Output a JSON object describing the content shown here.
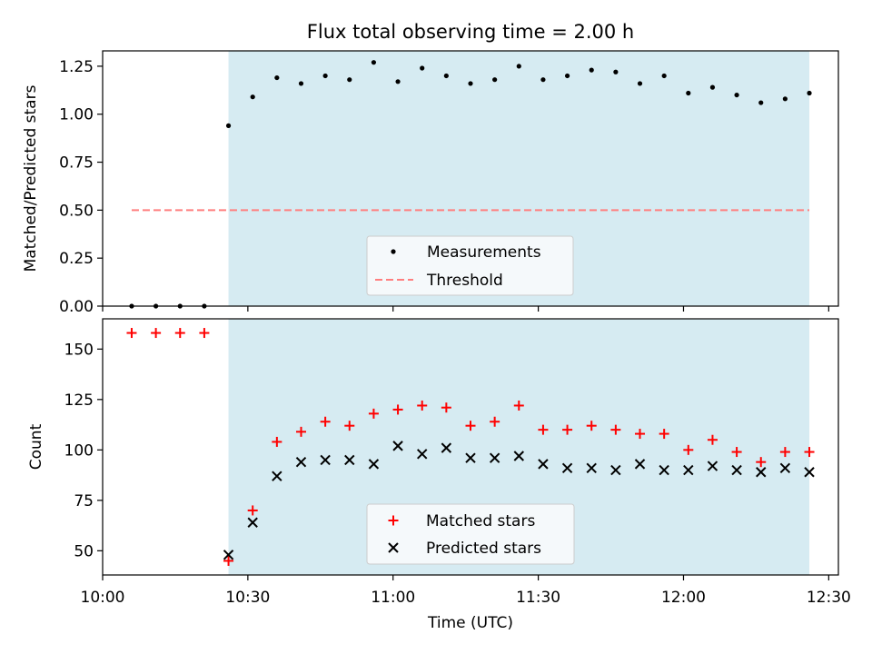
{
  "title": "Flux total observing time = 2.00 h",
  "colors": {
    "shade": "#add8e6",
    "measurement": "#000000",
    "threshold": "#ff7f7f",
    "matched": "#ff0000",
    "predicted": "#000000"
  },
  "chart_data": [
    {
      "type": "scatter",
      "ylabel": "Matched/Predicted stars",
      "ylim": [
        0,
        1.33
      ],
      "yticks": [
        "0.00",
        "0.25",
        "0.50",
        "0.75",
        "1.00",
        "1.25"
      ],
      "shaded_x_range": [
        "10:26",
        "12:26"
      ],
      "legend": {
        "placement": "lower-center",
        "entries": [
          "Measurements",
          "Threshold"
        ]
      },
      "threshold": {
        "name": "Threshold",
        "y": 0.5,
        "x_range": [
          "10:06",
          "12:26"
        ]
      },
      "series": [
        {
          "name": "Measurements",
          "x": [
            "10:06",
            "10:11",
            "10:16",
            "10:21",
            "10:26",
            "10:31",
            "10:36",
            "10:41",
            "10:46",
            "10:51",
            "10:56",
            "11:01",
            "11:06",
            "11:11",
            "11:16",
            "11:21",
            "11:26",
            "11:31",
            "11:36",
            "11:41",
            "11:46",
            "11:51",
            "11:56",
            "12:01",
            "12:06",
            "12:11",
            "12:16",
            "12:21",
            "12:26"
          ],
          "y": [
            0,
            0,
            0,
            0,
            0.94,
            1.09,
            1.19,
            1.16,
            1.2,
            1.18,
            1.27,
            1.17,
            1.24,
            1.2,
            1.16,
            1.18,
            1.25,
            1.18,
            1.2,
            1.23,
            1.22,
            1.16,
            1.2,
            1.11,
            1.14,
            1.1,
            1.06,
            1.08,
            1.11
          ]
        }
      ]
    },
    {
      "type": "scatter",
      "ylabel": "Count",
      "xlabel": "Time (UTC)",
      "ylim": [
        38,
        165
      ],
      "yticks": [
        "50",
        "75",
        "100",
        "125",
        "150"
      ],
      "xticks": [
        "10:00",
        "10:30",
        "11:00",
        "11:30",
        "12:00",
        "12:30"
      ],
      "shaded_x_range": [
        "10:26",
        "12:26"
      ],
      "legend": {
        "placement": "lower-center",
        "entries": [
          "Matched stars",
          "Predicted stars"
        ]
      },
      "series": [
        {
          "name": "Matched stars",
          "x": [
            "10:06",
            "10:11",
            "10:16",
            "10:21",
            "10:26",
            "10:31",
            "10:36",
            "10:41",
            "10:46",
            "10:51",
            "10:56",
            "11:01",
            "11:06",
            "11:11",
            "11:16",
            "11:21",
            "11:26",
            "11:31",
            "11:36",
            "11:41",
            "11:46",
            "11:51",
            "11:56",
            "12:01",
            "12:06",
            "12:11",
            "12:16",
            "12:21",
            "12:26"
          ],
          "y": [
            158,
            158,
            158,
            158,
            45,
            70,
            104,
            109,
            114,
            112,
            118,
            120,
            122,
            121,
            112,
            114,
            122,
            110,
            110,
            112,
            110,
            108,
            108,
            100,
            105,
            99,
            94,
            99,
            99
          ]
        },
        {
          "name": "Predicted stars",
          "x": [
            "10:26",
            "10:31",
            "10:36",
            "10:41",
            "10:46",
            "10:51",
            "10:56",
            "11:01",
            "11:06",
            "11:11",
            "11:16",
            "11:21",
            "11:26",
            "11:31",
            "11:36",
            "11:41",
            "11:46",
            "11:51",
            "11:56",
            "12:01",
            "12:06",
            "12:11",
            "12:16",
            "12:21",
            "12:26"
          ],
          "y": [
            48,
            64,
            87,
            94,
            95,
            95,
            93,
            102,
            98,
            101,
            96,
            96,
            97,
            93,
            91,
            91,
            90,
            93,
            90,
            90,
            92,
            90,
            89,
            91,
            89
          ]
        }
      ]
    }
  ]
}
